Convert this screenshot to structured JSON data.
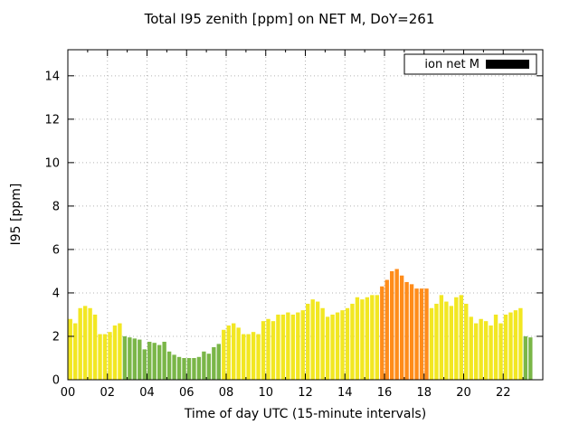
{
  "chart_data": {
    "type": "bar",
    "title": "Total I95 zenith [ppm] on NET M, DoY=261",
    "xlabel": "Time of day UTC (15-minute intervals)",
    "ylabel": "I95 [ppm]",
    "legend": {
      "label": "ion net M",
      "swatch_color": "#000000",
      "position": "top-right"
    },
    "x_tick_labels": [
      "00",
      "02",
      "04",
      "06",
      "08",
      "10",
      "12",
      "14",
      "16",
      "18",
      "20",
      "22"
    ],
    "y_ticks": [
      0,
      2,
      4,
      6,
      8,
      10,
      12,
      14
    ],
    "ylim": [
      0,
      15.2
    ],
    "xlim_hours": [
      0,
      24
    ],
    "interval_minutes": 15,
    "grid": true,
    "colors": {
      "low": "#7ab648",
      "mid": "#f2e722",
      "high": "#ff8c1a"
    },
    "color_thresholds": {
      "low_max": 2.0,
      "high_min": 4.05
    },
    "values": [
      2.8,
      2.6,
      3.3,
      3.4,
      3.3,
      3.0,
      2.1,
      2.1,
      2.2,
      2.5,
      2.6,
      2.0,
      1.95,
      1.9,
      1.85,
      1.4,
      1.75,
      1.7,
      1.6,
      1.75,
      1.3,
      1.15,
      1.05,
      1.0,
      1.0,
      1.0,
      1.05,
      1.3,
      1.2,
      1.5,
      1.65,
      2.3,
      2.5,
      2.6,
      2.4,
      2.1,
      2.1,
      2.2,
      2.1,
      2.7,
      2.8,
      2.7,
      3.0,
      3.0,
      3.1,
      3.0,
      3.1,
      3.2,
      3.5,
      3.7,
      3.6,
      3.3,
      2.9,
      3.0,
      3.1,
      3.2,
      3.3,
      3.5,
      3.8,
      3.7,
      3.8,
      3.9,
      3.9,
      4.3,
      4.6,
      5.0,
      5.1,
      4.8,
      4.5,
      4.4,
      4.2,
      4.2,
      4.2,
      3.3,
      3.5,
      3.9,
      3.6,
      3.4,
      3.8,
      3.9,
      3.5,
      2.9,
      2.6,
      2.8,
      2.7,
      2.5,
      3.0,
      2.6,
      3.0,
      3.1,
      3.2,
      3.3,
      2.0,
      1.95,
      null,
      null
    ]
  }
}
